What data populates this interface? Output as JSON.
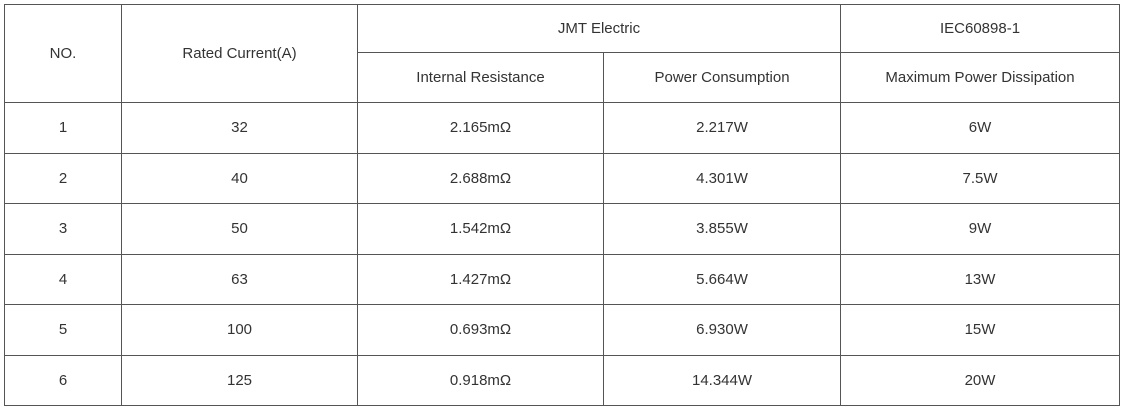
{
  "table": {
    "headers": {
      "no": "NO.",
      "rated_current": "Rated Current(A)",
      "group_1": "JMT Electric",
      "group_2": "IEC60898-1",
      "internal_resistance": "Internal Resistance",
      "power_consumption": "Power Consumption",
      "max_power_dissipation": "Maximum Power Dissipation"
    },
    "rows": [
      [
        1,
        32,
        "2.165mΩ",
        "2.217W",
        "6W"
      ],
      [
        2,
        40,
        "2.688mΩ",
        "4.301W",
        "7.5W"
      ],
      [
        3,
        50,
        "1.542mΩ",
        "3.855W",
        "9W"
      ],
      [
        4,
        63,
        "1.427mΩ",
        "5.664W",
        "13W"
      ],
      [
        5,
        100,
        "0.693mΩ",
        "6.930W",
        "15W"
      ],
      [
        6,
        125,
        "0.918mΩ",
        "14.344W",
        "20W"
      ]
    ]
  }
}
